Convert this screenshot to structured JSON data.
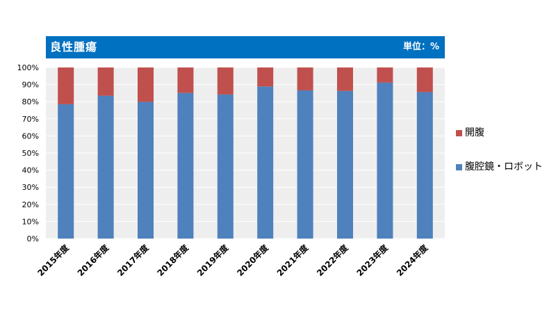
{
  "header": {
    "title": "良性腫瘍",
    "unit": "単位：%"
  },
  "colors": {
    "header_bg": "#0070c0",
    "plot_bg": "#eeeeee",
    "open": "#c0504d",
    "lap": "#4f81bd"
  },
  "chart_data": {
    "type": "bar",
    "stacked": true,
    "categories": [
      "2015年度",
      "2016年度",
      "2017年度",
      "2018年度",
      "2019年度",
      "2020年度",
      "2021年度",
      "2022年度",
      "2023年度",
      "2024年度"
    ],
    "series": [
      {
        "name": "腹腔鏡・ロボット",
        "color": "#4f81bd",
        "values": [
          78.5,
          83.5,
          79.9,
          85.1,
          84.2,
          88.9,
          86.6,
          86.3,
          91.2,
          85.6
        ]
      },
      {
        "name": "開腹",
        "color": "#c0504d",
        "values": [
          21.5,
          16.5,
          20.1,
          14.9,
          15.8,
          11.1,
          13.4,
          13.7,
          8.8,
          14.4
        ]
      }
    ],
    "legend_order": [
      "開腹",
      "腹腔鏡・ロボット"
    ],
    "ylim": [
      0,
      100
    ],
    "yticks": [
      "0%",
      "10%",
      "20%",
      "30%",
      "40%",
      "50%",
      "60%",
      "70%",
      "80%",
      "90%",
      "100%"
    ],
    "legend_position": "right",
    "grid": true
  }
}
